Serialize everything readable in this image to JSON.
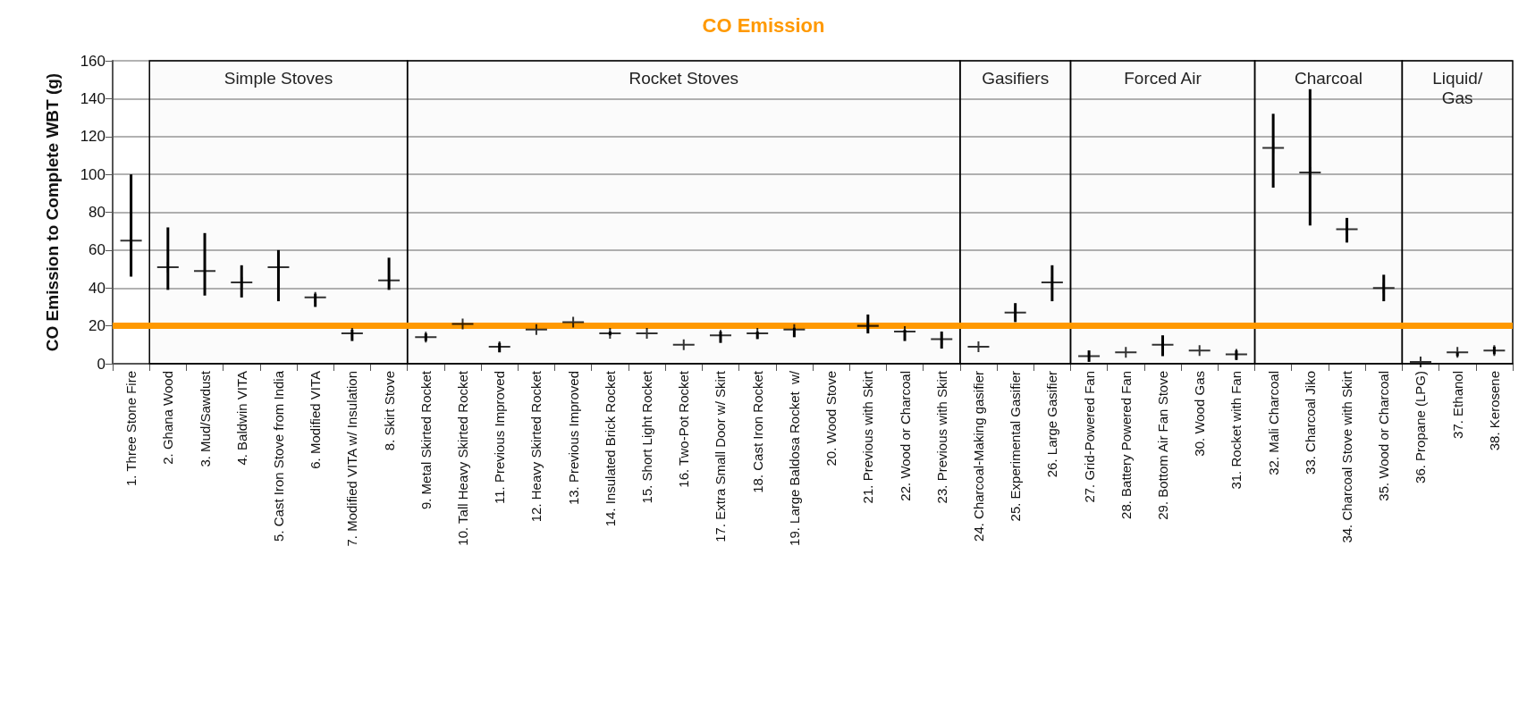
{
  "chart_data": {
    "type": "scatter",
    "title": "CO Emission",
    "ylabel": "CO Emission to Complete WBT (g)",
    "categories": [
      "1. Three Stone Fire",
      "2. Ghana Wood",
      "3. Mud/Sawdust",
      "4. Baldwin VITA",
      "5. Cast Iron Stove from India",
      "6. Modified VITA",
      "7. Modified VITA w/ Insulation",
      "8. Skirt Stove",
      "9. Metal Skirted Rocket",
      "10. Tall Heavy Skirted Rocket",
      "11. Previous Improved",
      "12. Heavy Skirted Rocket",
      "13. Previous Improved",
      "14. Insulated Brick Rocket",
      "15. Short Light Rocket",
      "16. Two-Pot Rocket",
      "17. Extra Small Door w/ Skirt",
      "18. Cast Iron Rocket",
      "19. Large Baldosa Rocket  w/",
      "20. Wood Stove",
      "21. Previous with Skirt",
      "22. Wood or Charcoal",
      "23. Previous with Skirt",
      "24. Charcoal-Making gasifier",
      "25. Experimental Gasifier",
      "26. Large Gasifier",
      "27. Grid-Powered Fan",
      "28. Battery Powered Fan",
      "29. Bottom Air Fan Stove",
      "30. Wood Gas",
      "31. Rocket with Fan",
      "32. Mali Charcoal",
      "33. Charcoal Jiko",
      "34. Charcoal Stove with Skirt",
      "35. Wood or Charcoal",
      "36. Propane (LPG)",
      "37. Ethanol",
      "38. Kerosene"
    ],
    "series": [
      {
        "color": "#000000",
        "values": [
          65,
          51,
          49,
          43,
          51,
          35,
          16,
          44,
          14,
          21,
          9,
          18,
          22,
          16,
          16,
          10,
          15,
          16,
          18,
          null,
          20,
          17,
          13,
          9,
          27,
          43,
          4,
          6,
          10,
          7,
          5,
          114,
          101,
          71,
          40,
          1,
          6,
          7
        ],
        "errors": [
          [
            46,
            100
          ],
          [
            39,
            72
          ],
          [
            36,
            69
          ],
          [
            35,
            52
          ],
          [
            33,
            60
          ],
          [
            30,
            37
          ],
          [
            12,
            18
          ],
          [
            39,
            56
          ],
          [
            12,
            16
          ],
          null,
          [
            6,
            11
          ],
          null,
          null,
          [
            15,
            17
          ],
          null,
          null,
          [
            11,
            17
          ],
          [
            13,
            17
          ],
          [
            14,
            19
          ],
          null,
          [
            16,
            26
          ],
          [
            12,
            18
          ],
          [
            8,
            17
          ],
          null,
          [
            22,
            32
          ],
          [
            33,
            52
          ],
          [
            1,
            7
          ],
          null,
          [
            4,
            15
          ],
          null,
          [
            2,
            7
          ],
          [
            93,
            132
          ],
          [
            73,
            145
          ],
          [
            64,
            77
          ],
          [
            33,
            47
          ],
          null,
          [
            4,
            6
          ],
          [
            5,
            9
          ]
        ]
      }
    ],
    "marker": "cross",
    "ylim": [
      0,
      160
    ],
    "yticks": [
      0,
      20,
      40,
      60,
      80,
      100,
      120,
      140,
      160
    ],
    "grid": "y",
    "ref_lines": [
      {
        "axis": "y",
        "value": 20,
        "color": "#ff9900"
      }
    ],
    "bands": [
      {
        "axis": "x",
        "from": "2. Ghana Wood",
        "to": "8. Skirt Stove",
        "label": "Simple Stoves"
      },
      {
        "axis": "x",
        "from": "9. Metal Skirted Rocket",
        "to": "23. Previous with Skirt",
        "label": "Rocket Stoves"
      },
      {
        "axis": "x",
        "from": "24. Charcoal-Making gasifier",
        "to": "26. Large Gasifier",
        "label": "Gasifiers"
      },
      {
        "axis": "x",
        "from": "27. Grid-Powered Fan",
        "to": "31. Rocket with Fan",
        "label": "Forced Air"
      },
      {
        "axis": "x",
        "from": "32. Mali Charcoal",
        "to": "35. Wood or Charcoal",
        "label": "Charcoal"
      },
      {
        "axis": "x",
        "from": "36. Propane (LPG)",
        "to": "38. Kerosene",
        "label": "Liquid/\nGas"
      }
    ]
  }
}
